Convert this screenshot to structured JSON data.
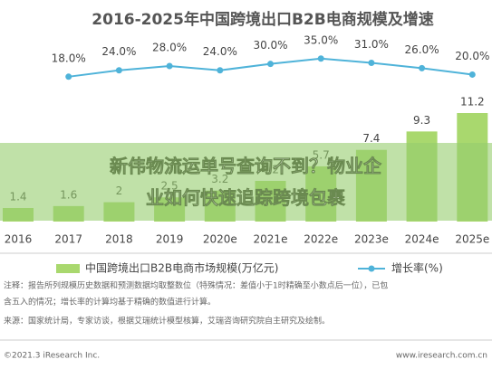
{
  "chart_data": {
    "type": "bar-line",
    "title": "2016-2025年中国跨境出口B2B电商规模及增速",
    "categories": [
      "2016",
      "2017",
      "2018",
      "2019",
      "2020e",
      "2021e",
      "2022e",
      "2023e",
      "2024e",
      "2025e"
    ],
    "series": [
      {
        "name": "中国跨境出口B2B电商市场规模(万亿元)",
        "color": "#a9d86e",
        "values": [
          1.4,
          1.6,
          2.0,
          2.5,
          3.2,
          4.2,
          5.7,
          7.4,
          9.3,
          11.2
        ]
      },
      {
        "name": "增长率(%)",
        "color": "#4fb3d9",
        "axis": "y2",
        "values": [
          null,
          18.0,
          24.0,
          28.0,
          24.0,
          30.0,
          35.0,
          31.0,
          26.0,
          20.0
        ],
        "value_labels": [
          null,
          "18.0%",
          "24.0%",
          "28.0%",
          "24.0%",
          "30.0%",
          "35.0%",
          "31.0%",
          "26.0%",
          "20.0%"
        ]
      }
    ],
    "ylim": [
      0,
      14
    ],
    "y2lim": [
      -118,
      90
    ]
  },
  "notes": [
    "注释：报告所列规模历史数据和预测数据均取整数位（特殊情况：差值小于1时精确至小数点后一位），已包",
    "含五入的情况；增长率的计算均基于精确的数值进行计算。"
  ],
  "source": "来源：国家统计局，专家访谈，根据艾瑞统计模型核算，艾瑞咨询研究院自主研究及绘制。",
  "footer": {
    "left": "©2021.3 iResearch Inc.",
    "right": "www.iresearch.com.cn"
  },
  "overlay": {
    "lines": [
      "新伟物流运单号查询不到？物业企",
      "业如何快速追踪跨境包裹"
    ]
  }
}
